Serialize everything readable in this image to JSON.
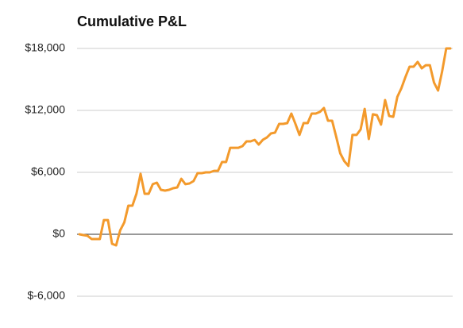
{
  "chart_data": {
    "type": "line",
    "title": "Cumulative P&L",
    "categories": [
      null,
      null,
      null,
      null,
      null,
      null,
      null,
      null,
      null,
      null,
      null,
      null,
      null,
      null,
      null,
      null,
      null,
      null,
      null,
      null,
      null,
      null,
      null,
      null,
      null,
      null,
      null,
      null,
      null,
      null,
      null,
      null,
      null,
      null,
      null,
      null,
      null,
      null,
      null,
      null,
      null,
      null,
      null,
      null,
      null,
      null,
      null,
      null,
      null,
      null,
      null,
      null,
      null,
      null,
      null,
      null,
      null,
      null,
      null,
      null,
      null,
      null,
      null,
      null,
      null,
      null,
      null,
      null,
      null,
      null,
      null,
      null,
      null,
      null,
      null,
      null,
      null,
      null,
      null,
      null,
      null,
      null,
      null,
      null,
      null,
      null,
      null,
      null,
      null,
      null,
      null,
      null
    ],
    "series": [
      {
        "name": "Cumulative P&L",
        "color": "#f39a2c",
        "values": [
          0,
          -80,
          -150,
          -460,
          -460,
          -460,
          1380,
          1380,
          -920,
          -1080,
          380,
          1150,
          2770,
          2770,
          3920,
          5850,
          3920,
          3920,
          4850,
          5000,
          4310,
          4230,
          4310,
          4460,
          4540,
          5380,
          4850,
          4920,
          5150,
          5920,
          5920,
          6000,
          6000,
          6150,
          6150,
          7000,
          7000,
          8380,
          8380,
          8380,
          8540,
          9000,
          9000,
          9150,
          8690,
          9150,
          9380,
          9770,
          9850,
          10690,
          10690,
          10770,
          11690,
          10690,
          9620,
          10770,
          10770,
          11690,
          11690,
          11850,
          12230,
          11000,
          11000,
          9460,
          7850,
          7080,
          6620,
          9620,
          9620,
          10150,
          12150,
          9230,
          11620,
          11540,
          10620,
          13000,
          11460,
          11380,
          13310,
          14150,
          15230,
          16230,
          16230,
          16690,
          16080,
          16380,
          16380,
          14690,
          13920,
          15770,
          18000,
          18000
        ]
      }
    ],
    "ylim": [
      -6000,
      18000
    ],
    "yticks": [
      {
        "value": -6000,
        "label": "$-6,000"
      },
      {
        "value": 0,
        "label": "$0"
      },
      {
        "value": 6000,
        "label": "$6,000"
      },
      {
        "value": 12000,
        "label": "$12,000"
      },
      {
        "value": 18000,
        "label": "$18,000"
      }
    ],
    "grid": true
  }
}
